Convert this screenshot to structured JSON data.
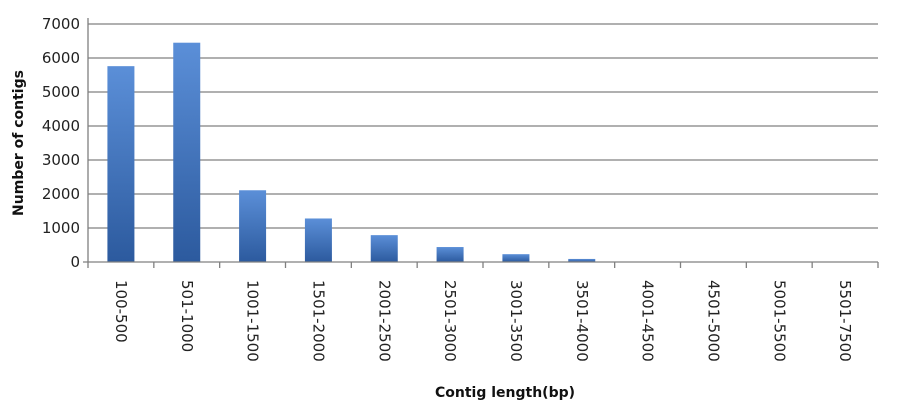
{
  "chart_data": {
    "type": "bar",
    "title": "",
    "xlabel": "Contig length(bp)",
    "ylabel": "Number of contigs",
    "ylim": [
      0,
      7000
    ],
    "yticks": [
      0,
      1000,
      2000,
      3000,
      4000,
      5000,
      6000,
      7000
    ],
    "grid": "horizontal",
    "legend": "none",
    "categories": [
      "100-500",
      "501-1000",
      "1001-1500",
      "1501-2000",
      "2001-2500",
      "2501-3000",
      "3001-3500",
      "3501-4000",
      "4001-4500",
      "4501-5000",
      "5001-5500",
      "5501-7500"
    ],
    "series": [
      {
        "values": [
          5760,
          6450,
          2110,
          1280,
          790,
          440,
          230,
          90,
          0,
          0,
          0,
          0
        ]
      }
    ],
    "colors": {
      "bar_light": "#5b8fd8",
      "bar_dark": "#2c5a9e",
      "grid": "#808080",
      "axis": "#808080"
    }
  }
}
